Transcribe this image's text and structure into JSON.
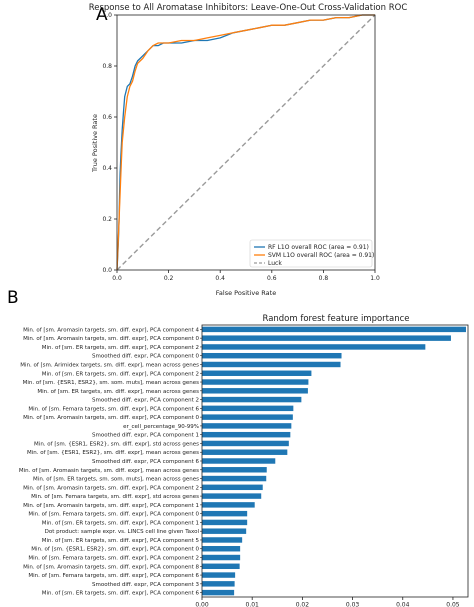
{
  "panels": {
    "a": "A",
    "b": "B"
  },
  "chart_data": [
    {
      "type": "line",
      "title": "Response to All Aromatase Inhibitors: Leave-One-Out Cross-Validation ROC",
      "xlabel": "False Positive Rate",
      "ylabel": "True Positive Rate",
      "xlim": [
        0,
        1
      ],
      "ylim": [
        0,
        1
      ],
      "xticks": [
        "0.0",
        "0.2",
        "0.4",
        "0.6",
        "0.8",
        "1.0"
      ],
      "yticks": [
        "0.0",
        "0.2",
        "0.4",
        "0.6",
        "0.8",
        "1.0"
      ],
      "grid": false,
      "legend_position": "lower-right",
      "series": [
        {
          "name": "RF L1O overall ROC (area = 0.91)",
          "color": "#1f77b4",
          "x": [
            0,
            0.005,
            0.008,
            0.01,
            0.012,
            0.015,
            0.02,
            0.025,
            0.03,
            0.04,
            0.05,
            0.06,
            0.07,
            0.08,
            0.09,
            0.1,
            0.12,
            0.14,
            0.16,
            0.18,
            0.2,
            0.25,
            0.3,
            0.35,
            0.4,
            0.45,
            0.5,
            0.55,
            0.6,
            0.65,
            0.7,
            0.75,
            0.8,
            0.85,
            0.9,
            0.95,
            1.0
          ],
          "y": [
            0,
            0.1,
            0.2,
            0.3,
            0.38,
            0.45,
            0.55,
            0.62,
            0.68,
            0.72,
            0.73,
            0.76,
            0.8,
            0.82,
            0.83,
            0.84,
            0.86,
            0.88,
            0.88,
            0.89,
            0.89,
            0.89,
            0.9,
            0.9,
            0.91,
            0.93,
            0.94,
            0.95,
            0.96,
            0.96,
            0.97,
            0.98,
            0.98,
            0.99,
            0.99,
            1.0,
            1.0
          ]
        },
        {
          "name": "SVM L1O overall ROC (area = 0.91)",
          "color": "#ff7f0e",
          "x": [
            0,
            0.005,
            0.008,
            0.012,
            0.015,
            0.02,
            0.03,
            0.04,
            0.05,
            0.06,
            0.07,
            0.08,
            0.1,
            0.12,
            0.14,
            0.16,
            0.2,
            0.25,
            0.3,
            0.35,
            0.4,
            0.45,
            0.5,
            0.55,
            0.6,
            0.65,
            0.7,
            0.75,
            0.8,
            0.85,
            0.9,
            0.95,
            1.0
          ],
          "y": [
            0,
            0.12,
            0.2,
            0.3,
            0.38,
            0.5,
            0.6,
            0.68,
            0.72,
            0.74,
            0.78,
            0.81,
            0.83,
            0.86,
            0.88,
            0.89,
            0.89,
            0.9,
            0.9,
            0.91,
            0.92,
            0.93,
            0.94,
            0.95,
            0.96,
            0.96,
            0.97,
            0.98,
            0.98,
            0.99,
            0.99,
            1.0,
            1.0
          ]
        },
        {
          "name": "Luck",
          "color": "#9a9a9a",
          "x": [
            0,
            1
          ],
          "y": [
            0,
            1
          ]
        }
      ]
    },
    {
      "type": "bar",
      "orientation": "horizontal",
      "title": "Random forest feature importance",
      "xlim": [
        0,
        0.053
      ],
      "xticks": [
        "0.00",
        "0.01",
        "0.02",
        "0.03",
        "0.04",
        "0.05"
      ],
      "bar_color": "#1f77b4",
      "categories": [
        "Min. of [sm. Aromasin targets, sm. diff. expr], PCA component 4",
        "Min. of [sm. Aromasin targets, sm. diff. expr], PCA component 0",
        "Min. of [sm. ER targets, sm. diff. expr], PCA component 2",
        "Smoothed diff. expr, PCA component 0",
        "Min. of [sm. Arimidex targets, sm. diff. expr], mean across genes",
        "Min. of [sm. ER targets, sm. diff. expr], PCA component 2",
        "Min. of [sm. {ESR1, ESR2}, sm. som. muts], mean across genes",
        "Min. of [sm. ER targets, sm. diff. expr], mean across genes",
        "Smoothed diff. expr, PCA component 2",
        "Min. of [sm. Femara targets, sm. diff. expr], PCA component 6",
        "Min. of [sm. Aromasin targets, sm. diff. expr], PCA component 0",
        "er_cell_percentage_90-99%",
        "Smoothed diff. expr, PCA component 1",
        "Min. of [sm. {ESR1, ESR2}, sm. diff. expr], std across genes",
        "Min. of [sm. {ESR1, ESR2}, sm. diff. expr], mean across genes",
        "Smoothed diff. expr, PCA component 6",
        "Min. of [sm. Aromasin targets, sm. diff. expr], mean across genes",
        "Min. of [sm. ER targets, sm. som. muts], mean across genes",
        "Min. of [sm. Aromasin targets, sm. diff. expr], PCA component 2",
        "Min. of [sm. Femara targets, sm. diff. expr], std across genes",
        "Min. of [sm. Aromasin targets, sm. diff. expr], PCA component 1",
        "Min. of [sm. Femara targets, sm. diff. expr], PCA component 0",
        "Min. of [sm. ER targets, sm. diff. expr], PCA component 1",
        "Dot product: sample expr. vs. LINCS cell line given Taxol",
        "Min. of [sm. ER targets, sm. diff. expr], PCA component 5",
        "Min. of [sm. {ESR1, ESR2}, sm. diff. expr], PCA component 0",
        "Min. of [sm. Femara targets, sm. diff. expr], PCA component 2",
        "Min. of [sm. Aromasin targets, sm. diff. expr], PCA component 8",
        "Min. of [sm. Femara targets, sm. diff. expr], PCA component 6",
        "Smoothed diff. expr, PCA component 3",
        "Min. of [sm. ER targets, sm. diff. expr], PCA component 6"
      ],
      "values": [
        0.0526,
        0.0496,
        0.0445,
        0.0278,
        0.0276,
        0.0218,
        0.0212,
        0.0211,
        0.0198,
        0.0182,
        0.0181,
        0.0178,
        0.0176,
        0.0173,
        0.017,
        0.0146,
        0.0129,
        0.0128,
        0.0121,
        0.0118,
        0.0105,
        0.009,
        0.009,
        0.0088,
        0.008,
        0.0076,
        0.0076,
        0.0075,
        0.0066,
        0.0065,
        0.0064
      ]
    }
  ]
}
